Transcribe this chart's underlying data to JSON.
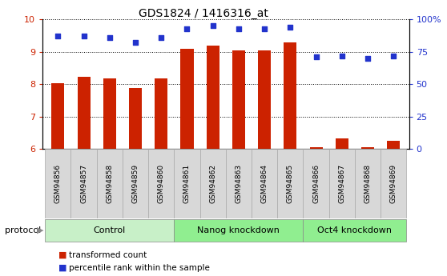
{
  "title": "GDS1824 / 1416316_at",
  "samples": [
    "GSM94856",
    "GSM94857",
    "GSM94858",
    "GSM94859",
    "GSM94860",
    "GSM94861",
    "GSM94862",
    "GSM94863",
    "GSM94864",
    "GSM94865",
    "GSM94866",
    "GSM94867",
    "GSM94868",
    "GSM94869"
  ],
  "transformed_count": [
    8.02,
    8.22,
    8.19,
    7.88,
    8.19,
    9.1,
    9.18,
    9.04,
    9.04,
    9.3,
    6.05,
    6.34,
    6.05,
    6.25
  ],
  "percentile_rank": [
    87,
    87,
    86,
    82,
    86,
    93,
    95,
    93,
    93,
    94,
    71,
    72,
    70,
    72
  ],
  "groups": [
    {
      "label": "Control",
      "start": 0,
      "end": 5
    },
    {
      "label": "Nanog knockdown",
      "start": 5,
      "end": 10
    },
    {
      "label": "Oct4 knockdown",
      "start": 10,
      "end": 14
    }
  ],
  "group_colors": [
    "#c8f0c8",
    "#90ee90",
    "#90ee90"
  ],
  "bar_color": "#cc2200",
  "dot_color": "#2233cc",
  "ylim_left": [
    6,
    10
  ],
  "ylim_right": [
    0,
    100
  ],
  "yticks_left": [
    6,
    7,
    8,
    9,
    10
  ],
  "yticks_right": [
    0,
    25,
    50,
    75,
    100
  ],
  "ylabel_right_labels": [
    "0",
    "25",
    "50",
    "75",
    "100%"
  ],
  "tick_label_bg": "#d8d8d8",
  "legend_red_label": "transformed count",
  "legend_blue_label": "percentile rank within the sample",
  "protocol_label": "protocol"
}
